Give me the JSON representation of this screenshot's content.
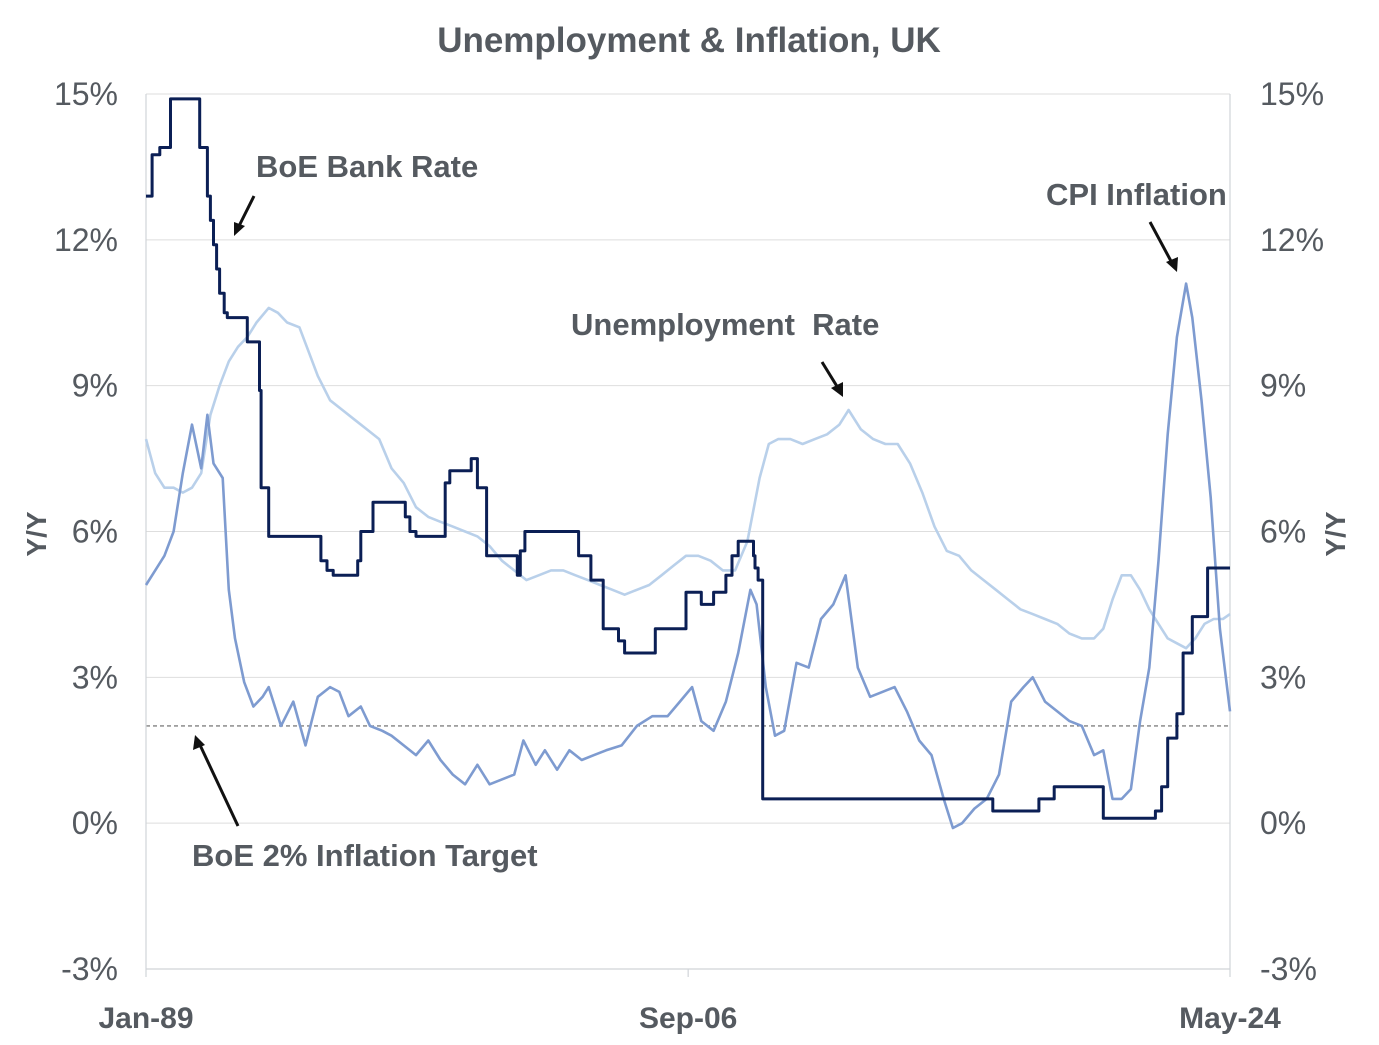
{
  "chart_data": {
    "type": "line",
    "title": "Unemployment & Inflation, UK",
    "ylabel_left": "Y/Y",
    "ylabel_right": "Y/Y",
    "ylim": [
      -3,
      15
    ],
    "yticks": [
      "15%",
      "12%",
      "9%",
      "6%",
      "3%",
      "0%",
      "-3%"
    ],
    "ytick_values": [
      15,
      12,
      9,
      6,
      3,
      0,
      -3
    ],
    "xlim": [
      1989.0,
      2024.33
    ],
    "xticks": [
      "Jan-89",
      "Sep-06",
      "May-24"
    ],
    "xtick_values": [
      1989.0,
      2006.67,
      2024.33
    ],
    "grid": true,
    "target_line": {
      "name": "BoE 2% Inflation Target",
      "value": 2.0
    },
    "annotations": [
      {
        "text": "BoE Bank Rate"
      },
      {
        "text": "CPI Inflation"
      },
      {
        "text": "Unemployment  Rate"
      },
      {
        "text": "BoE 2% Inflation Target"
      }
    ],
    "series": [
      {
        "name": "BoE Bank Rate",
        "color": "#0b1f55",
        "style": "step",
        "x": [
          1989.0,
          1989.2,
          1989.45,
          1989.8,
          1989.9,
          1990.75,
          1991.0,
          1991.1,
          1991.2,
          1991.3,
          1991.4,
          1991.55,
          1991.65,
          1991.75,
          1992.3,
          1992.7,
          1992.75,
          1993.0,
          1993.9,
          1994.7,
          1994.9,
          1995.1,
          1995.9,
          1996.0,
          1996.4,
          1996.7,
          1996.8,
          1997.3,
          1997.45,
          1997.6,
          1997.8,
          1998.1,
          1998.75,
          1998.9,
          1999.0,
          1999.1,
          1999.3,
          1999.6,
          1999.8,
          2000.1,
          2001.1,
          2001.2,
          2001.35,
          2001.6,
          2001.75,
          2003.1,
          2003.5,
          2003.9,
          2004.1,
          2004.4,
          2004.6,
          2005.6,
          2006.6,
          2006.9,
          2007.1,
          2007.5,
          2007.9,
          2008.1,
          2008.3,
          2008.8,
          2008.85,
          2008.95,
          2009.1,
          2016.6,
          2018.1,
          2018.6,
          2020.2,
          2020.3,
          2021.9,
          2022.1,
          2022.3,
          2022.6,
          2022.8,
          2023.1,
          2023.6,
          2024.33
        ],
        "values": [
          12.9,
          13.75,
          13.9,
          14.9,
          14.9,
          13.9,
          12.9,
          12.4,
          11.9,
          11.4,
          10.9,
          10.5,
          10.4,
          10.4,
          9.9,
          8.9,
          6.9,
          5.9,
          5.9,
          5.4,
          5.2,
          5.1,
          5.4,
          6.0,
          6.6,
          6.6,
          6.6,
          6.6,
          6.3,
          6.0,
          5.9,
          5.9,
          7.0,
          7.25,
          7.25,
          7.25,
          7.25,
          7.5,
          6.9,
          5.5,
          5.1,
          5.6,
          6.0,
          6.0,
          6.0,
          5.5,
          5.0,
          4.0,
          4.0,
          3.75,
          3.5,
          4.0,
          4.75,
          4.75,
          4.5,
          4.75,
          5.1,
          5.5,
          5.8,
          5.5,
          5.25,
          5.0,
          0.5,
          0.25,
          0.5,
          0.75,
          0.1,
          0.1,
          0.25,
          0.75,
          1.75,
          2.25,
          3.5,
          4.25,
          5.25,
          5.25
        ]
      },
      {
        "name": "CPI Inflation",
        "color": "#7e9bd0",
        "style": "line",
        "x": [
          1989.0,
          1989.3,
          1989.6,
          1989.9,
          1990.2,
          1990.5,
          1990.8,
          1991.0,
          1991.2,
          1991.5,
          1991.7,
          1991.9,
          1992.2,
          1992.5,
          1992.8,
          1993.0,
          1993.4,
          1993.8,
          1994.2,
          1994.6,
          1995.0,
          1995.3,
          1995.6,
          1996.0,
          1996.3,
          1996.7,
          1997.0,
          1997.4,
          1997.8,
          1998.2,
          1998.6,
          1999.0,
          1999.4,
          1999.8,
          2000.2,
          2000.6,
          2001.0,
          2001.3,
          2001.7,
          2002.0,
          2002.4,
          2002.8,
          2003.2,
          2003.6,
          2004.0,
          2004.5,
          2005.0,
          2005.5,
          2006.0,
          2006.4,
          2006.8,
          2007.1,
          2007.5,
          2007.9,
          2008.3,
          2008.7,
          2008.9,
          2009.2,
          2009.5,
          2009.8,
          2010.2,
          2010.6,
          2011.0,
          2011.4,
          2011.8,
          2012.2,
          2012.6,
          2013.0,
          2013.4,
          2013.8,
          2014.2,
          2014.6,
          2015.0,
          2015.3,
          2015.6,
          2016.0,
          2016.4,
          2016.8,
          2017.2,
          2017.6,
          2017.9,
          2018.3,
          2018.7,
          2019.1,
          2019.5,
          2019.9,
          2020.2,
          2020.5,
          2020.8,
          2021.1,
          2021.4,
          2021.7,
          2022.0,
          2022.3,
          2022.6,
          2022.9,
          2023.1,
          2023.4,
          2023.7,
          2024.0,
          2024.33
        ],
        "values": [
          4.9,
          5.2,
          5.5,
          6.0,
          7.2,
          8.2,
          7.3,
          8.4,
          7.4,
          7.1,
          4.8,
          3.8,
          2.9,
          2.4,
          2.6,
          2.8,
          2.0,
          2.5,
          1.6,
          2.6,
          2.8,
          2.7,
          2.2,
          2.4,
          2.0,
          1.9,
          1.8,
          1.6,
          1.4,
          1.7,
          1.3,
          1.0,
          0.8,
          1.2,
          0.8,
          0.9,
          1.0,
          1.7,
          1.2,
          1.5,
          1.1,
          1.5,
          1.3,
          1.4,
          1.5,
          1.6,
          2.0,
          2.2,
          2.2,
          2.5,
          2.8,
          2.1,
          1.9,
          2.5,
          3.5,
          4.8,
          4.5,
          2.8,
          1.8,
          1.9,
          3.3,
          3.2,
          4.2,
          4.5,
          5.1,
          3.2,
          2.6,
          2.7,
          2.8,
          2.3,
          1.7,
          1.4,
          0.5,
          -0.1,
          0.0,
          0.3,
          0.5,
          1.0,
          2.5,
          2.8,
          3.0,
          2.5,
          2.3,
          2.1,
          2.0,
          1.4,
          1.5,
          0.5,
          0.5,
          0.7,
          2.1,
          3.2,
          5.4,
          8.0,
          10.0,
          11.1,
          10.4,
          8.7,
          6.7,
          4.0,
          2.3
        ]
      },
      {
        "name": "Unemployment  Rate",
        "color": "#b9d0ea",
        "style": "line",
        "x": [
          1989.0,
          1989.3,
          1989.6,
          1989.9,
          1990.2,
          1990.5,
          1990.8,
          1991.1,
          1991.4,
          1991.7,
          1992.0,
          1992.3,
          1992.6,
          1993.0,
          1993.3,
          1993.6,
          1994.0,
          1994.3,
          1994.6,
          1995.0,
          1995.4,
          1995.8,
          1996.2,
          1996.6,
          1997.0,
          1997.4,
          1997.8,
          1998.2,
          1998.6,
          1999.0,
          1999.4,
          1999.8,
          2000.2,
          2000.6,
          2001.0,
          2001.4,
          2001.8,
          2002.2,
          2002.6,
          2003.0,
          2003.4,
          2003.8,
          2004.2,
          2004.6,
          2005.0,
          2005.4,
          2005.8,
          2006.2,
          2006.6,
          2007.0,
          2007.4,
          2007.8,
          2008.2,
          2008.6,
          2009.0,
          2009.3,
          2009.6,
          2010.0,
          2010.4,
          2010.8,
          2011.2,
          2011.6,
          2011.9,
          2012.3,
          2012.7,
          2013.1,
          2013.5,
          2013.9,
          2014.3,
          2014.7,
          2015.1,
          2015.5,
          2015.9,
          2016.3,
          2016.7,
          2017.1,
          2017.5,
          2017.9,
          2018.3,
          2018.7,
          2019.1,
          2019.5,
          2019.9,
          2020.2,
          2020.5,
          2020.8,
          2021.1,
          2021.4,
          2021.7,
          2022.0,
          2022.3,
          2022.6,
          2022.9,
          2023.2,
          2023.5,
          2023.8,
          2024.1,
          2024.33
        ],
        "values": [
          7.9,
          7.2,
          6.9,
          6.9,
          6.8,
          6.9,
          7.2,
          8.4,
          9.0,
          9.5,
          9.8,
          10.0,
          10.3,
          10.6,
          10.5,
          10.3,
          10.2,
          9.7,
          9.2,
          8.7,
          8.5,
          8.3,
          8.1,
          7.9,
          7.3,
          7.0,
          6.5,
          6.3,
          6.2,
          6.1,
          6.0,
          5.9,
          5.7,
          5.4,
          5.2,
          5.0,
          5.1,
          5.2,
          5.2,
          5.1,
          5.0,
          4.9,
          4.8,
          4.7,
          4.8,
          4.9,
          5.1,
          5.3,
          5.5,
          5.5,
          5.4,
          5.2,
          5.2,
          5.8,
          7.1,
          7.8,
          7.9,
          7.9,
          7.8,
          7.9,
          8.0,
          8.2,
          8.5,
          8.1,
          7.9,
          7.8,
          7.8,
          7.4,
          6.8,
          6.1,
          5.6,
          5.5,
          5.2,
          5.0,
          4.8,
          4.6,
          4.4,
          4.3,
          4.2,
          4.1,
          3.9,
          3.8,
          3.8,
          4.0,
          4.6,
          5.1,
          5.1,
          4.8,
          4.4,
          4.1,
          3.8,
          3.7,
          3.6,
          3.8,
          4.1,
          4.2,
          4.2,
          4.3
        ]
      }
    ]
  }
}
